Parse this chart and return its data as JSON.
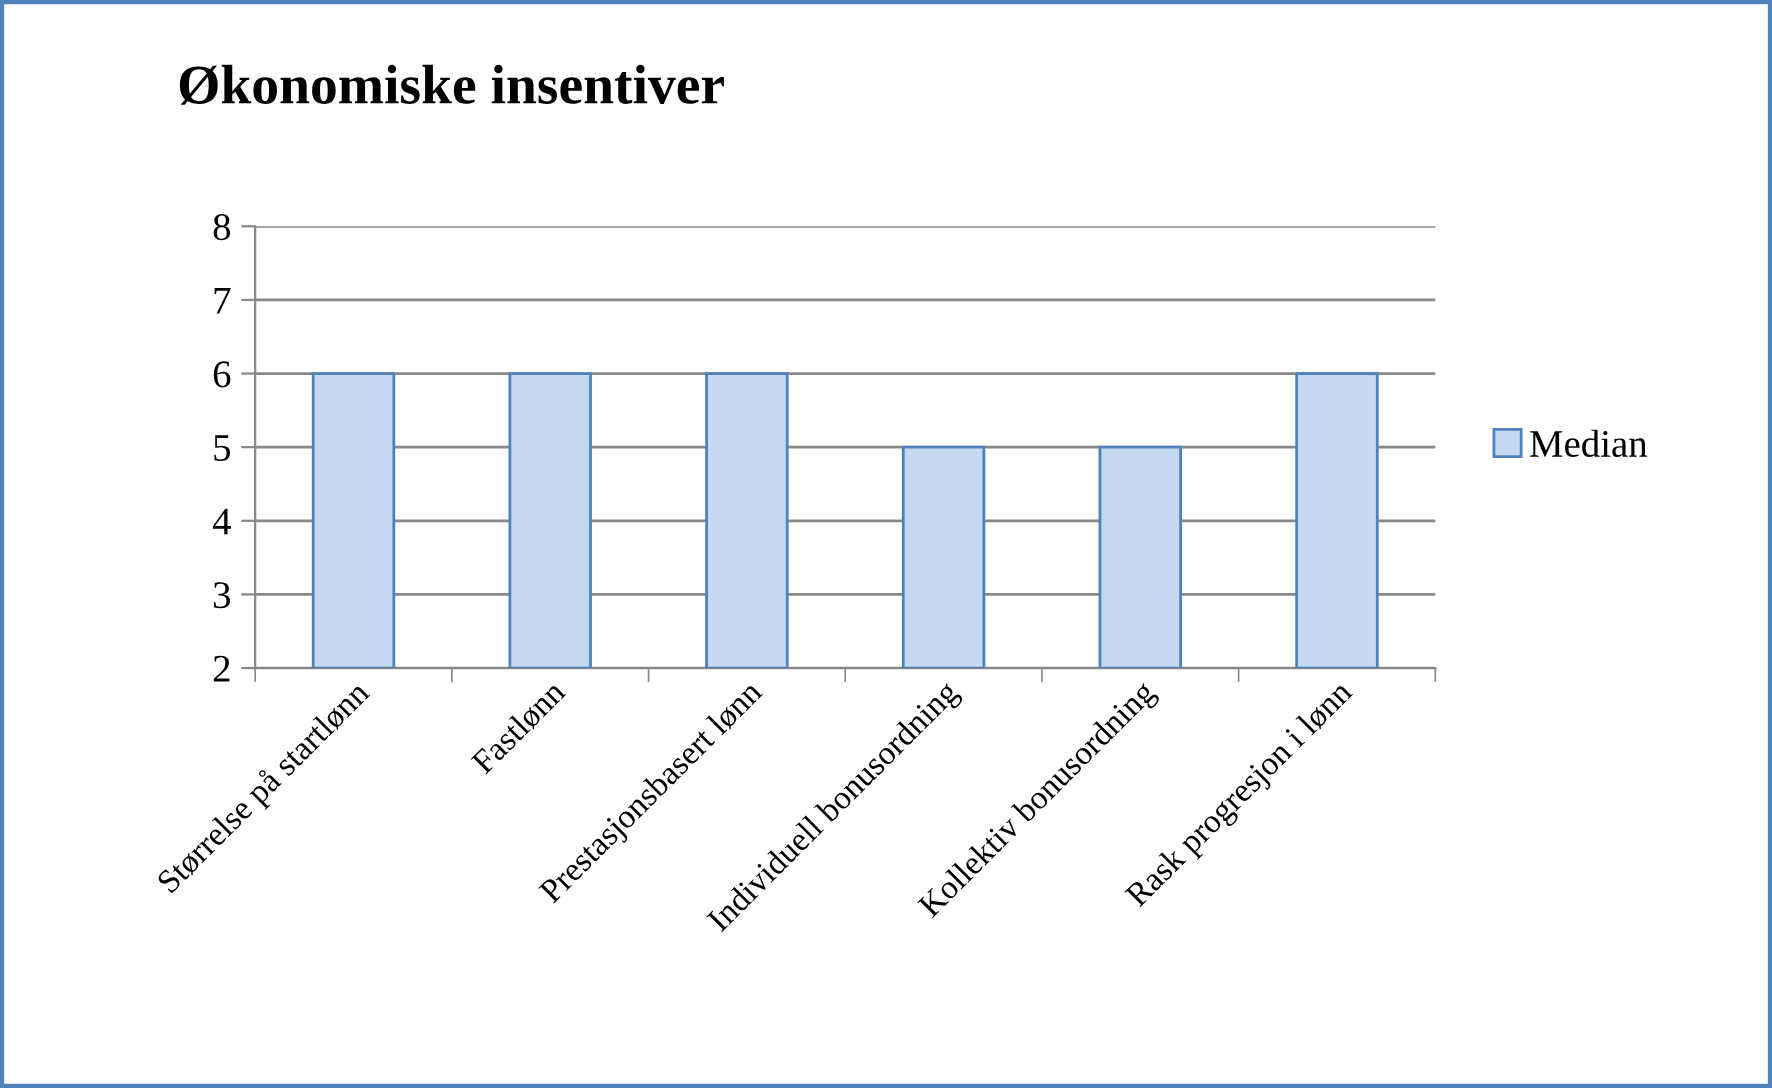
{
  "chart_data": {
    "type": "bar",
    "title": "Økonomiske insentiver",
    "categories": [
      "Størrelse på startlønn",
      "Fastlønn",
      "Prestasjonsbasert lønn",
      "Individuell bonusordning",
      "Kollektiv bonusordning",
      "Rask progresjon i lønn"
    ],
    "series": [
      {
        "name": "Median",
        "color": "#c5d9f1",
        "values": [
          6,
          6,
          6,
          5,
          5,
          6
        ]
      }
    ],
    "ylim": [
      2,
      8
    ],
    "yticks": [
      2,
      3,
      4,
      5,
      6,
      7,
      8
    ],
    "grid": "y",
    "legend": "right"
  }
}
